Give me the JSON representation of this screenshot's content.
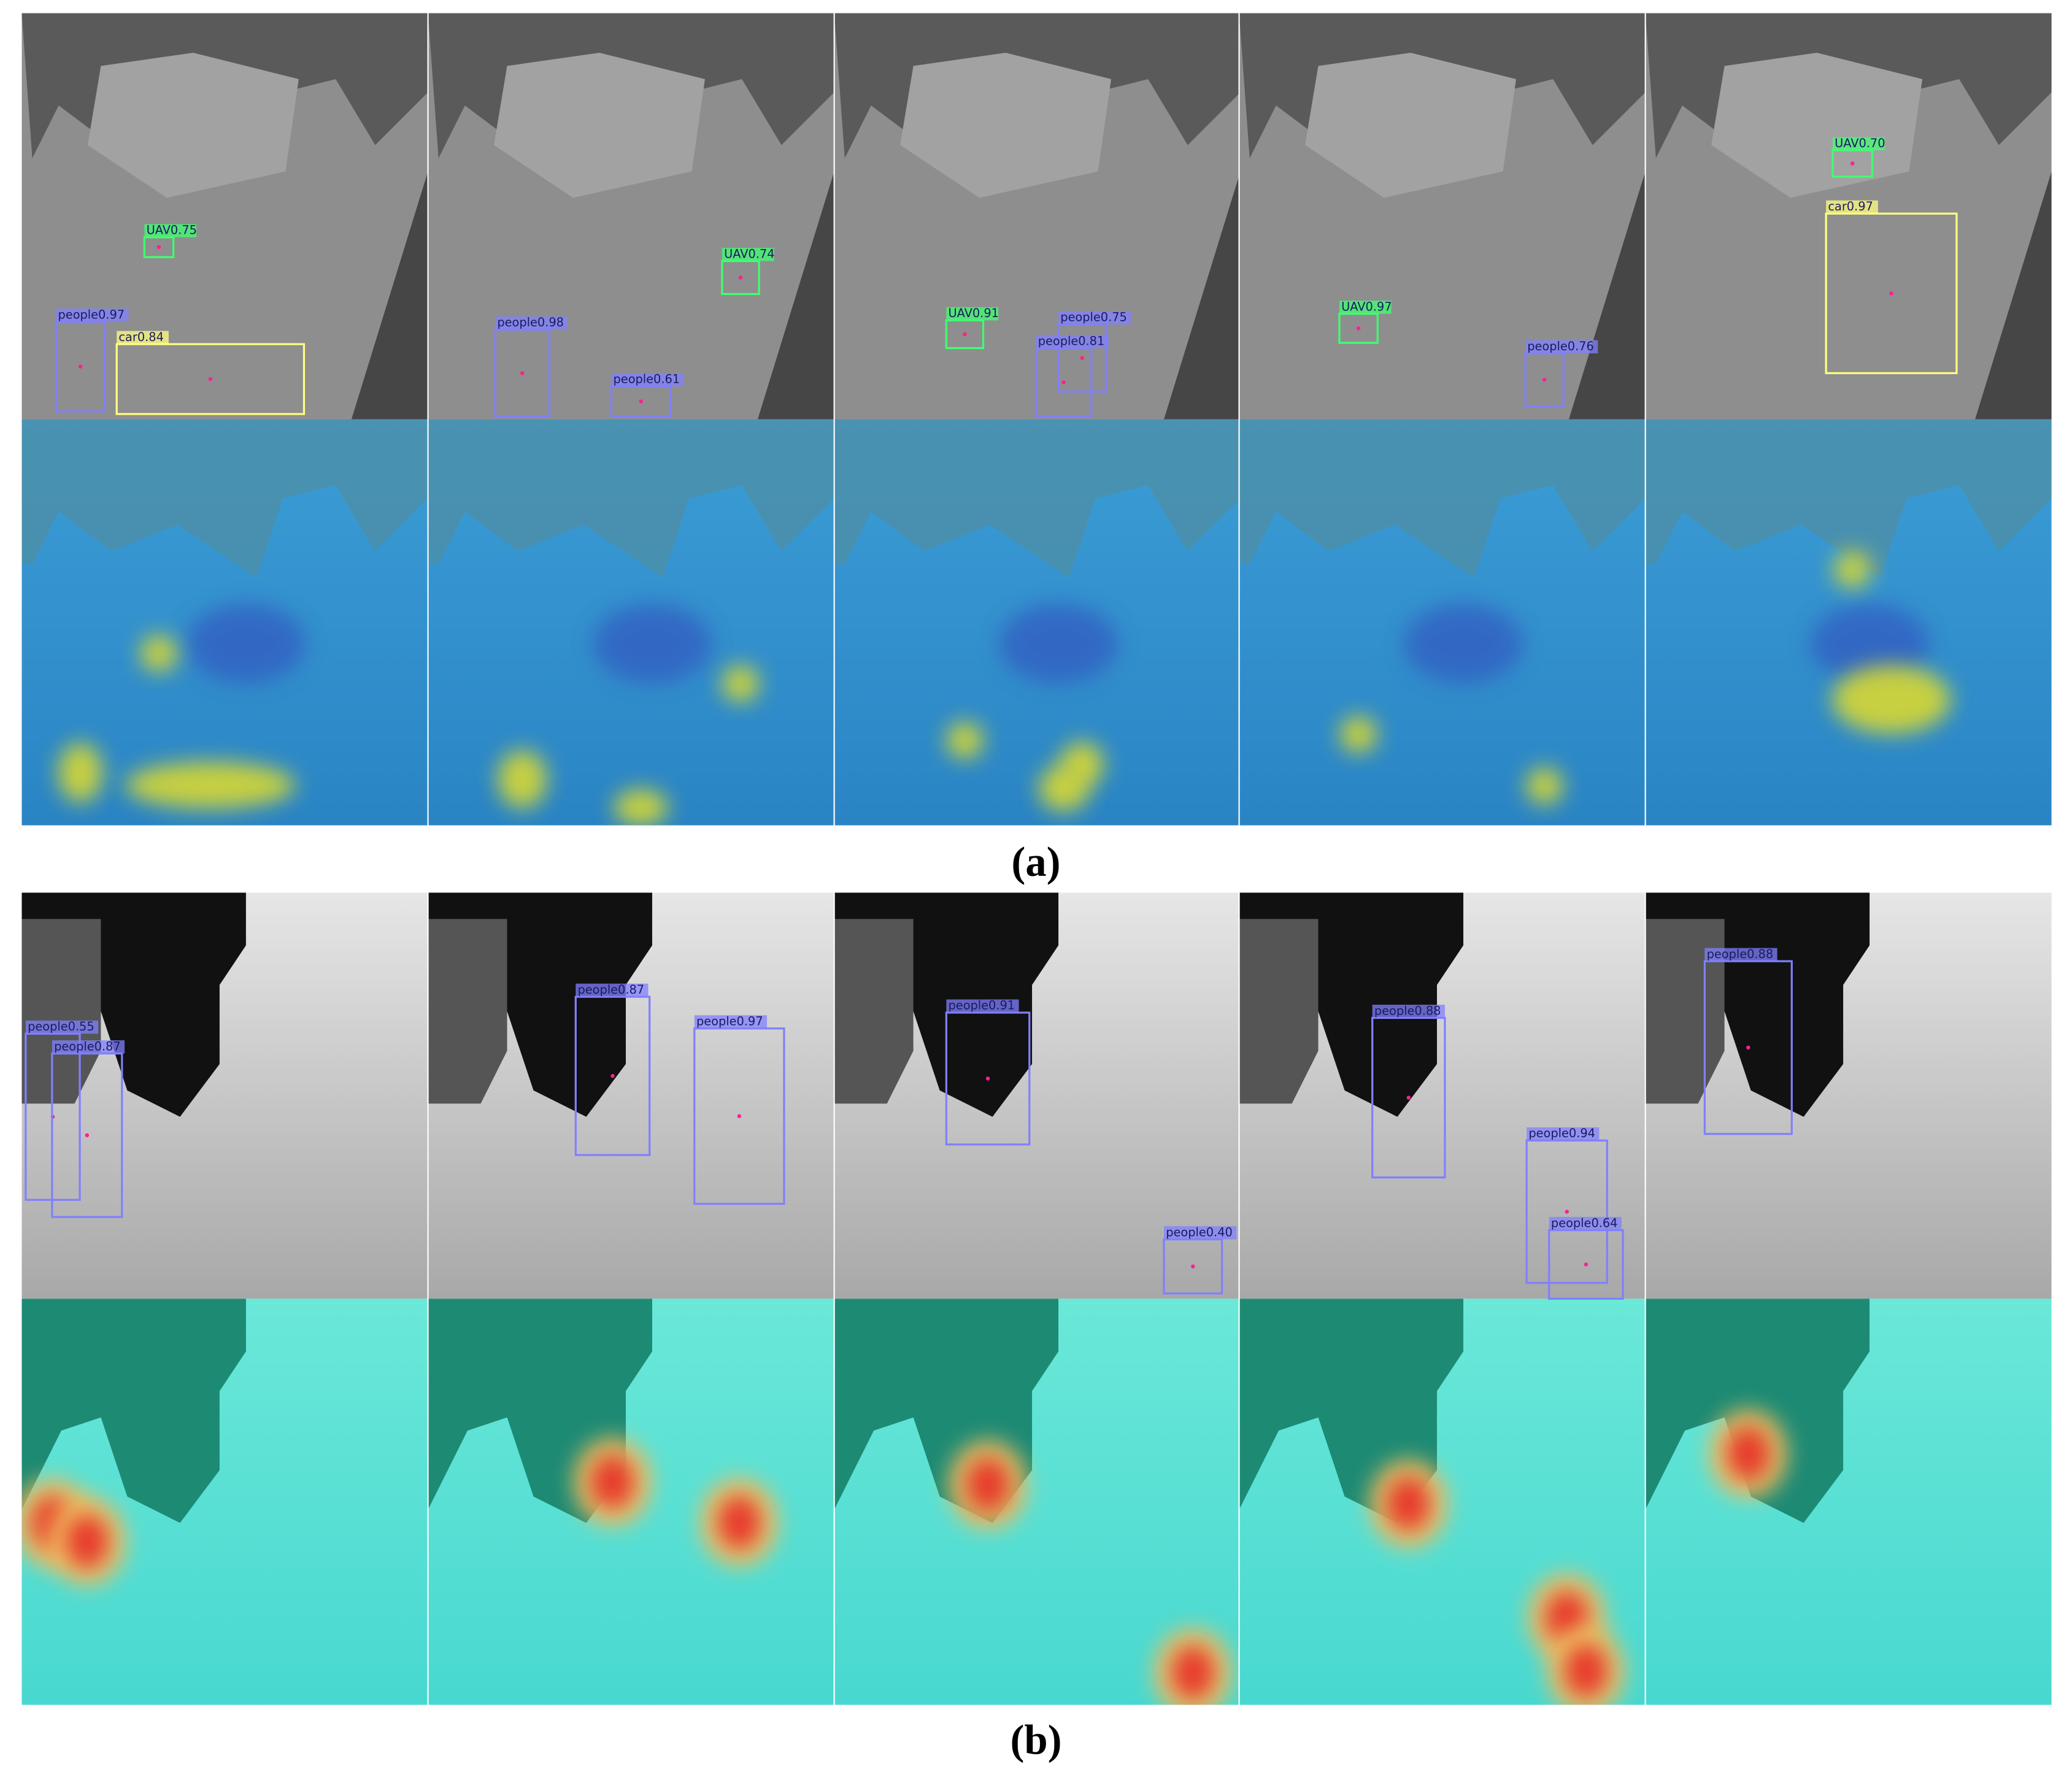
{
  "panels": [
    {
      "caption": "(a)",
      "frames": [
        {
          "detections": [
            {
              "label": "UAV0.75",
              "color": "#40ff70"
            },
            {
              "label": "people0.97",
              "color": "#8080ff"
            },
            {
              "label": "car0.84",
              "color": "#ffff80"
            }
          ]
        },
        {
          "detections": [
            {
              "label": "UAV0.74",
              "color": "#40ff70"
            },
            {
              "label": "people0.98",
              "color": "#8080ff"
            },
            {
              "label": "people0.61",
              "color": "#8080ff"
            }
          ]
        },
        {
          "detections": [
            {
              "label": "UAV0.91",
              "color": "#40ff70"
            },
            {
              "label": "people0.75",
              "color": "#8080ff"
            },
            {
              "label": "people0.81",
              "color": "#8080ff"
            }
          ]
        },
        {
          "detections": [
            {
              "label": "UAV0.97",
              "color": "#40ff70"
            },
            {
              "label": "people0.76",
              "color": "#8080ff"
            }
          ]
        },
        {
          "detections": [
            {
              "label": "UAV0.70",
              "color": "#40ff70"
            },
            {
              "label": "car0.97",
              "color": "#ffff80"
            }
          ]
        }
      ]
    },
    {
      "caption": "(b)",
      "frames": [
        {
          "detections": [
            {
              "label": "people0.55",
              "color": "#8080ff"
            },
            {
              "label": "people0.87",
              "color": "#8080ff"
            }
          ]
        },
        {
          "detections": [
            {
              "label": "people0.87",
              "color": "#8080ff"
            },
            {
              "label": "people0.97",
              "color": "#8080ff"
            }
          ]
        },
        {
          "detections": [
            {
              "label": "people0.91",
              "color": "#8080ff"
            },
            {
              "label": "people0.40",
              "color": "#8080ff"
            }
          ]
        },
        {
          "detections": [
            {
              "label": "people0.88",
              "color": "#8080ff"
            },
            {
              "label": "people0.94",
              "color": "#8080ff"
            },
            {
              "label": "people0.64",
              "color": "#8080ff"
            }
          ]
        },
        {
          "detections": [
            {
              "label": "people0.88",
              "color": "#8080ff"
            }
          ]
        }
      ]
    }
  ]
}
